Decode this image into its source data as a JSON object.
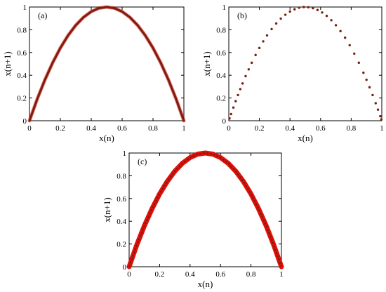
{
  "colors": {
    "curve_dark": "#7a1e10",
    "curve_red": "#e0100a",
    "axis": "#000000",
    "background": "#ffffff"
  },
  "chart_data": [
    {
      "type": "line",
      "panel_label": "(a)",
      "xlabel": "x(n)",
      "ylabel": "x(n+1)",
      "xlim": [
        0,
        1
      ],
      "ylim": [
        0,
        1
      ],
      "xticks": [
        0,
        0.2,
        0.4,
        0.6,
        0.8,
        1
      ],
      "yticks": [
        0,
        0.2,
        0.4,
        0.6,
        0.8,
        1
      ],
      "xtick_labels": [
        "0",
        "0.2",
        "0.4",
        "0.6",
        "0.8",
        "1"
      ],
      "ytick_labels": [
        "0",
        "0.2",
        "0.4",
        "0.6",
        "0.8",
        "1"
      ],
      "series": [
        {
          "x": [
            0,
            0.05,
            0.1,
            0.15,
            0.2,
            0.25,
            0.3,
            0.35,
            0.4,
            0.45,
            0.5,
            0.55,
            0.6,
            0.65,
            0.7,
            0.75,
            0.8,
            0.85,
            0.9,
            0.95,
            1
          ],
          "y": [
            0,
            0.19,
            0.36,
            0.51,
            0.64,
            0.75,
            0.84,
            0.91,
            0.96,
            0.99,
            1,
            0.99,
            0.96,
            0.91,
            0.84,
            0.75,
            0.64,
            0.51,
            0.36,
            0.19,
            0
          ]
        }
      ],
      "style": "continuous",
      "grid": false
    },
    {
      "type": "scatter",
      "panel_label": "(b)",
      "xlabel": "x(n)",
      "ylabel": "x(n+1)",
      "xlim": [
        0,
        1
      ],
      "ylim": [
        0,
        1
      ],
      "xticks": [
        0,
        0.2,
        0.4,
        0.6,
        0.8,
        1
      ],
      "yticks": [
        0,
        0.2,
        0.4,
        0.6,
        0.8,
        1
      ],
      "xtick_labels": [
        "0",
        "0.2",
        "0.4",
        "0.6",
        "0.8",
        "1"
      ],
      "ytick_labels": [
        "0",
        "0.2",
        "0.4",
        "0.6",
        "0.8",
        "1"
      ],
      "series": [
        {
          "x": [
            0.005,
            0.015,
            0.03,
            0.045,
            0.06,
            0.075,
            0.09,
            0.11,
            0.13,
            0.15,
            0.175,
            0.2,
            0.225,
            0.25,
            0.28,
            0.31,
            0.34,
            0.37,
            0.4,
            0.43,
            0.46,
            0.49,
            0.52,
            0.55,
            0.58,
            0.61,
            0.64,
            0.67,
            0.7,
            0.73,
            0.76,
            0.79,
            0.82,
            0.85,
            0.88,
            0.9,
            0.92,
            0.94,
            0.96,
            0.975,
            0.99,
            0.997
          ],
          "y": [
            0.02,
            0.059,
            0.116,
            0.172,
            0.226,
            0.278,
            0.328,
            0.392,
            0.452,
            0.51,
            0.578,
            0.64,
            0.698,
            0.75,
            0.806,
            0.855,
            0.898,
            0.932,
            0.96,
            0.98,
            0.994,
            1,
            0.998,
            0.99,
            0.974,
            0.952,
            0.922,
            0.884,
            0.84,
            0.788,
            0.73,
            0.664,
            0.59,
            0.51,
            0.422,
            0.36,
            0.294,
            0.226,
            0.154,
            0.0975,
            0.0396,
            0.012
          ]
        }
      ],
      "style": "dotted",
      "grid": false
    },
    {
      "type": "line",
      "panel_label": "(c)",
      "xlabel": "x(n)",
      "ylabel": "x(n+1)",
      "xlim": [
        0,
        1
      ],
      "ylim": [
        0,
        1
      ],
      "xticks": [
        0,
        0.2,
        0.4,
        0.6,
        0.8,
        1
      ],
      "yticks": [
        0,
        0.2,
        0.4,
        0.6,
        0.8,
        1
      ],
      "xtick_labels": [
        "0",
        "0.2",
        "0.4",
        "0.6",
        "0.8",
        "1"
      ],
      "ytick_labels": [
        "0",
        "0.2",
        "0.4",
        "0.6",
        "0.8",
        "1"
      ],
      "series": [
        {
          "x": [
            0,
            0.05,
            0.1,
            0.15,
            0.2,
            0.25,
            0.3,
            0.35,
            0.4,
            0.45,
            0.5,
            0.55,
            0.6,
            0.65,
            0.7,
            0.75,
            0.8,
            0.85,
            0.9,
            0.95,
            1
          ],
          "y": [
            0,
            0.19,
            0.36,
            0.51,
            0.64,
            0.75,
            0.84,
            0.91,
            0.96,
            0.99,
            1,
            0.99,
            0.96,
            0.91,
            0.84,
            0.75,
            0.64,
            0.51,
            0.36,
            0.19,
            0
          ]
        }
      ],
      "style": "noisy-band",
      "grid": false
    }
  ]
}
